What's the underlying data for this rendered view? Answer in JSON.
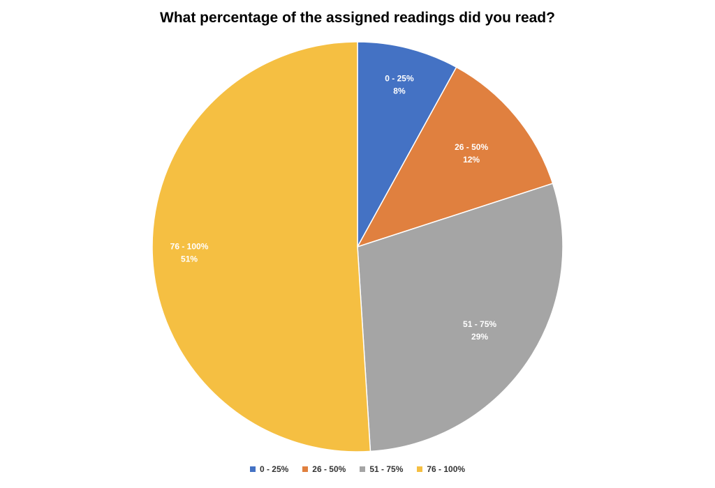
{
  "chart_data": {
    "type": "pie",
    "title": "What percentage of the assigned readings did you read?",
    "categories": [
      "0 - 25%",
      "26 - 50%",
      "51 - 75%",
      "76 - 100%"
    ],
    "values": [
      8,
      12,
      29,
      51
    ],
    "value_labels": [
      "8%",
      "12%",
      "29%",
      "51%"
    ],
    "colors": [
      "#4472C4",
      "#E0803F",
      "#A5A5A5",
      "#F5BF42"
    ],
    "legend_position": "bottom",
    "start_angle_deg": 0,
    "direction": "clockwise"
  }
}
